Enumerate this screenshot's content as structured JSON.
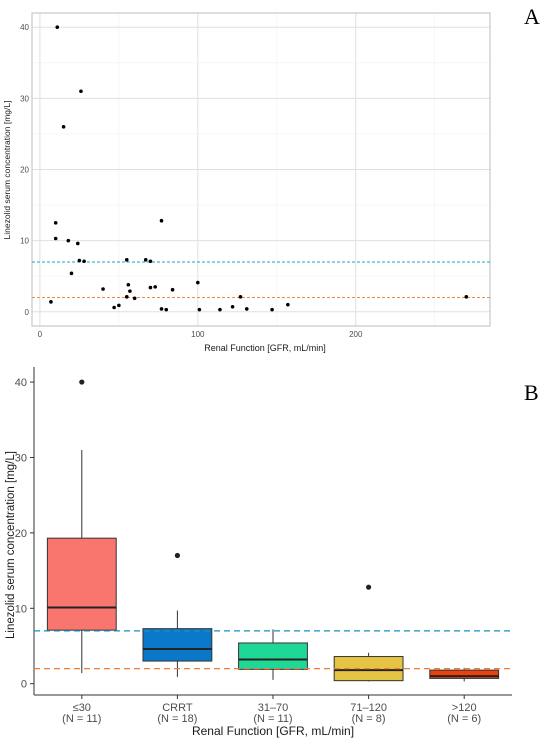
{
  "chart_data": [
    {
      "panel_label": "A",
      "type": "scatter",
      "xlabel": "Renal Function [GFR, mL/min]",
      "ylabel": "Linezolid serum concentration [mg/L]",
      "xlim": [
        -5,
        285
      ],
      "ylim": [
        -2,
        42
      ],
      "xticks": [
        "0",
        "100",
        "200"
      ],
      "yticks": [
        "0",
        "10",
        "20",
        "30",
        "40"
      ],
      "grid": true,
      "reference_lines": [
        {
          "y": 7,
          "color": "#1aa3c8",
          "style": "dashed"
        },
        {
          "y": 2,
          "color": "#f08a3c",
          "style": "dashed"
        }
      ],
      "points": [
        [
          11,
          40
        ],
        [
          26,
          31
        ],
        [
          15,
          26
        ],
        [
          10,
          12.5
        ],
        [
          77,
          12.8
        ],
        [
          10,
          10.3
        ],
        [
          18,
          10
        ],
        [
          24,
          9.6
        ],
        [
          20,
          5.4
        ],
        [
          25,
          7.2
        ],
        [
          28,
          7.1
        ],
        [
          55,
          7.3
        ],
        [
          67,
          7.3
        ],
        [
          70,
          7.1
        ],
        [
          40,
          3.2
        ],
        [
          56,
          3.8
        ],
        [
          57,
          2.9
        ],
        [
          55,
          2.1
        ],
        [
          60,
          1.9
        ],
        [
          70,
          3.4
        ],
        [
          73,
          3.5
        ],
        [
          84,
          3.1
        ],
        [
          100,
          4.1
        ],
        [
          7,
          1.4
        ],
        [
          47,
          0.6
        ],
        [
          50,
          0.9
        ],
        [
          77,
          0.4
        ],
        [
          80,
          0.3
        ],
        [
          101,
          0.3
        ],
        [
          114,
          0.3
        ],
        [
          122,
          0.7
        ],
        [
          127,
          2.1
        ],
        [
          131,
          0.4
        ],
        [
          147,
          0.3
        ],
        [
          157,
          1.0
        ],
        [
          270,
          2.1
        ]
      ]
    },
    {
      "panel_label": "B",
      "type": "box",
      "xlabel": "Renal Function [GFR, mL/min]",
      "ylabel": "Linezolid serum concentration [mg/L]",
      "ylim": [
        -1.5,
        42
      ],
      "yticks": [
        "0",
        "10",
        "20",
        "30",
        "40"
      ],
      "grid": false,
      "reference_lines": [
        {
          "y": 7,
          "color": "#1a8fc0",
          "style": "dashed"
        },
        {
          "y": 2,
          "color": "#f07a30",
          "style": "dashed"
        }
      ],
      "categories": [
        {
          "label": "≤30",
          "n": "(N = 11)",
          "color": "#f8766d",
          "min": 1.4,
          "q1": 7.1,
          "median": 10.1,
          "q3": 19.3,
          "max": 31,
          "outliers": [
            40
          ]
        },
        {
          "label": "CRRT",
          "n": "(N = 18)",
          "color": "#0a78c8",
          "min": 0.9,
          "q1": 3.0,
          "median": 4.6,
          "q3": 7.3,
          "max": 9.7,
          "outliers": [
            17
          ]
        },
        {
          "label": "31–70",
          "n": "(N = 11)",
          "color": "#1fd896",
          "min": 0.5,
          "q1": 1.9,
          "median": 3.2,
          "q3": 5.4,
          "max": 7.2,
          "outliers": []
        },
        {
          "label": "71–120",
          "n": "(N = 8)",
          "color": "#e6c443",
          "min": 0.3,
          "q1": 0.4,
          "median": 1.8,
          "q3": 3.6,
          "max": 4.1,
          "outliers": [
            12.8
          ]
        },
        {
          "label": ">120",
          "n": "(N = 6)",
          "color": "#e8420f",
          "min": 0.3,
          "q1": 0.7,
          "median": 1.0,
          "q3": 1.8,
          "max": 2.1,
          "outliers": []
        }
      ]
    }
  ]
}
